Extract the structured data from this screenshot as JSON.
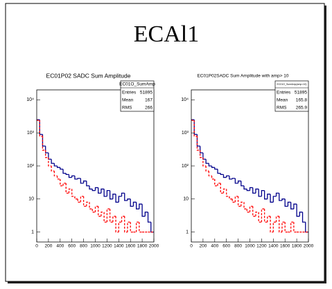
{
  "title": "ECAl1",
  "chart_data": [
    {
      "type": "histogram",
      "title": "EC01P02 SADC Sum Amplitude",
      "log_y": true,
      "bins": [
        0,
        50,
        100,
        150,
        200,
        250,
        300,
        350,
        400,
        450,
        500,
        550,
        600,
        650,
        700,
        750,
        800,
        850,
        900,
        950,
        1000,
        1050,
        1100,
        1150,
        1200,
        1250,
        1300,
        1350,
        1400,
        1450,
        1500,
        1550,
        1600,
        1650,
        1700,
        1750,
        1800,
        1850,
        1900,
        1950,
        2000
      ],
      "series": [
        {
          "color": "#00008b",
          "dashed": false,
          "values": [
            2500,
            900,
            400,
            250,
            160,
            120,
            100,
            90,
            80,
            60,
            55,
            45,
            50,
            40,
            42,
            30,
            35,
            25,
            20,
            18,
            22,
            15,
            20,
            12,
            18,
            10,
            14,
            8,
            12,
            15,
            9,
            10,
            6,
            8,
            5,
            7,
            3,
            4,
            2,
            1
          ]
        },
        {
          "color": "#ff0000",
          "dashed": true,
          "values": [
            2400,
            800,
            300,
            180,
            100,
            70,
            50,
            40,
            25,
            30,
            15,
            20,
            12,
            10,
            8,
            12,
            6,
            8,
            5,
            4,
            6,
            3,
            4,
            2,
            5,
            2,
            3,
            1,
            2,
            3,
            1,
            2,
            1,
            1,
            2,
            1,
            1,
            1,
            1,
            1
          ]
        }
      ],
      "xlim": [
        0,
        2000
      ],
      "xticks": [
        0,
        200,
        400,
        600,
        800,
        1000,
        1200,
        1400,
        1600,
        1800,
        2000
      ],
      "ylim": [
        0.5,
        20000
      ],
      "yticks": [
        1,
        10,
        {
          "value": 100,
          "label": "10²"
        },
        {
          "value": 1000,
          "label": "10³"
        },
        {
          "value": 10000,
          "label": "10⁴"
        }
      ],
      "stats": {
        "name": "EC01O_SumAmp",
        "entries_label": "Entries",
        "entries": 51895,
        "mean_label": "Mean",
        "mean": 167,
        "rms_label": "RMS",
        "rms": 266
      }
    },
    {
      "type": "histogram",
      "title": "EC01P02SADC Sum Amplitude with amp> 10",
      "log_y": true,
      "bins": [
        0,
        50,
        100,
        150,
        200,
        250,
        300,
        350,
        400,
        450,
        500,
        550,
        600,
        650,
        700,
        750,
        800,
        850,
        900,
        950,
        1000,
        1050,
        1100,
        1150,
        1200,
        1250,
        1300,
        1350,
        1400,
        1450,
        1500,
        1550,
        1600,
        1650,
        1700,
        1750,
        1800,
        1850,
        1900,
        1950,
        2000
      ],
      "series": [
        {
          "color": "#00008b",
          "dashed": false,
          "values": [
            2500,
            900,
            400,
            250,
            160,
            120,
            100,
            90,
            80,
            60,
            55,
            45,
            50,
            40,
            42,
            30,
            35,
            25,
            20,
            18,
            22,
            15,
            20,
            12,
            18,
            10,
            14,
            8,
            12,
            15,
            9,
            10,
            6,
            8,
            5,
            7,
            3,
            4,
            2,
            1
          ]
        },
        {
          "color": "#ff0000",
          "dashed": true,
          "values": [
            2400,
            800,
            300,
            180,
            100,
            70,
            50,
            40,
            25,
            30,
            15,
            20,
            12,
            10,
            8,
            12,
            6,
            8,
            5,
            4,
            6,
            3,
            4,
            2,
            5,
            2,
            3,
            1,
            2,
            3,
            1,
            2,
            1,
            1,
            2,
            1,
            1,
            1,
            1,
            1
          ]
        }
      ],
      "xlim": [
        0,
        2000
      ],
      "xticks": [
        0,
        200,
        400,
        600,
        800,
        1000,
        1200,
        1400,
        1600,
        1800,
        2000
      ],
      "ylim": [
        0.5,
        20000
      ],
      "yticks": [
        1,
        10,
        {
          "value": 100,
          "label": "10²"
        },
        {
          "value": 1000,
          "label": "10³"
        },
        {
          "value": 10000,
          "label": "10⁴"
        }
      ],
      "stats": {
        "name": "EC01O_SumAmp(amp>10)",
        "entries_label": "Entries",
        "entries": 51895,
        "mean_label": "Mean",
        "mean": 165.8,
        "rms_label": "RMS",
        "rms": 265.9
      }
    }
  ]
}
